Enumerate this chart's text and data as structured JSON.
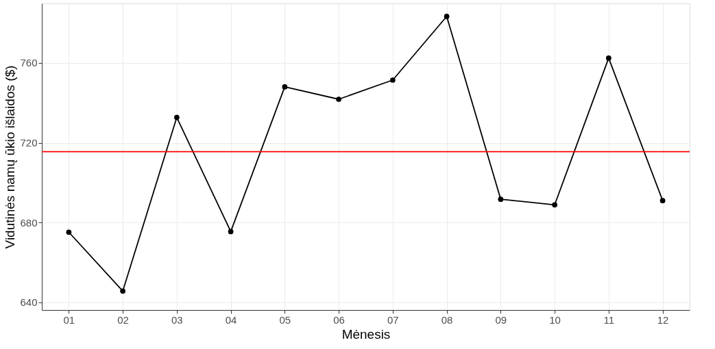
{
  "chart_data": {
    "type": "line",
    "xlabel": "Mėnesis",
    "ylabel": "Vidutinės namų ūkio išlaidos ($)",
    "categories": [
      "01",
      "02",
      "03",
      "04",
      "05",
      "06",
      "07",
      "08",
      "09",
      "10",
      "11",
      "12"
    ],
    "series": [
      {
        "color": "#000000",
        "values": [
          675.2,
          645.7,
          732.7,
          675.5,
          748.0,
          741.8,
          751.4,
          783.3,
          691.7,
          688.9,
          762.4,
          691.0
        ]
      }
    ],
    "ylim": [
      636.2,
      789.8
    ],
    "yticks": [
      640,
      680,
      720,
      760
    ],
    "ref_lines": [
      {
        "axis": "y",
        "value": 715.5,
        "color": "#ff0000"
      }
    ],
    "grid": true,
    "marker": "circle",
    "line_style": "solid"
  }
}
